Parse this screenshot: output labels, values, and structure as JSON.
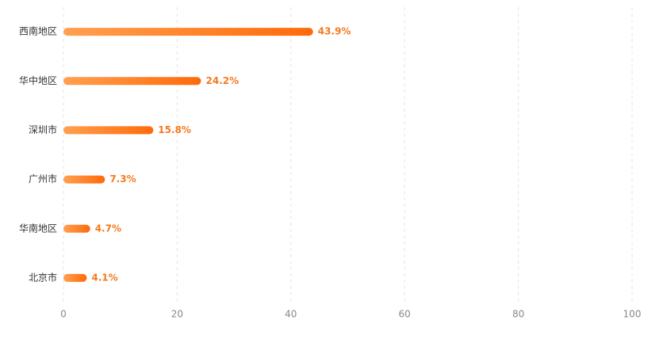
{
  "chart_data": {
    "type": "bar",
    "orientation": "horizontal",
    "categories": [
      "西南地区",
      "华中地区",
      "深圳市",
      "广州市",
      "华南地区",
      "北京市"
    ],
    "values": [
      43.9,
      24.2,
      15.8,
      7.3,
      4.7,
      4.1
    ],
    "value_labels": [
      "43.9%",
      "24.2%",
      "15.8%",
      "7.3%",
      "4.7%",
      "4.1%"
    ],
    "color": [
      "#ffa050",
      "#ff6a0a"
    ],
    "xlim": [
      0,
      100
    ],
    "xticks": [
      0,
      20,
      40,
      60,
      80,
      100
    ],
    "grid": true
  }
}
